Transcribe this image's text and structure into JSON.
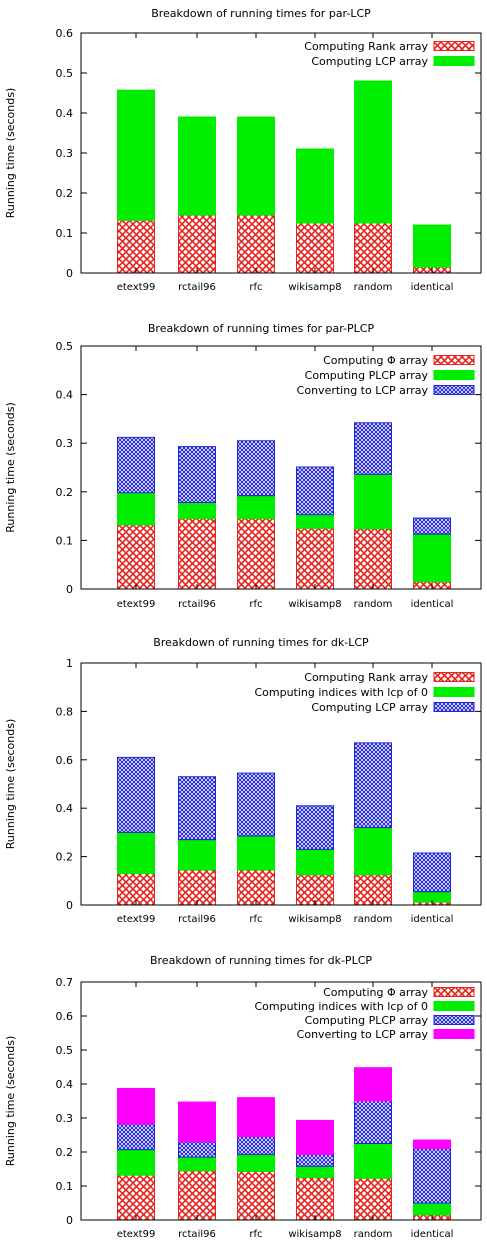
{
  "colors": {
    "red": "#e8221c",
    "green": "#00ee00",
    "blue": "#1c22d8",
    "magenta": "#ff00ff",
    "axis": "#000000"
  },
  "chart_data": [
    {
      "type": "bar",
      "stacked": true,
      "title": "Breakdown of running times for par-LCP",
      "ylabel": "Running time (seconds)",
      "xlabel": "",
      "ylim": [
        0,
        0.6
      ],
      "yticks": [
        "0",
        "0.1",
        "0.2",
        "0.3",
        "0.4",
        "0.5",
        "0.6"
      ],
      "ytick_values": [
        0,
        0.1,
        0.2,
        0.3,
        0.4,
        0.5,
        0.6
      ],
      "categories": [
        "etext99",
        "rctail96",
        "rfc",
        "wikisamp8",
        "random",
        "identical"
      ],
      "legend_position": "top-right",
      "series": [
        {
          "name": "Computing Rank array",
          "pattern": "red-crosshatch",
          "values": [
            0.132,
            0.145,
            0.145,
            0.125,
            0.125,
            0.015
          ]
        },
        {
          "name": "Computing LCP array",
          "pattern": "green-solid",
          "values": [
            0.325,
            0.245,
            0.245,
            0.185,
            0.355,
            0.105
          ]
        }
      ]
    },
    {
      "type": "bar",
      "stacked": true,
      "title": "Breakdown of running times for par-PLCP",
      "ylabel": "Running time (seconds)",
      "xlabel": "",
      "ylim": [
        0,
        0.5
      ],
      "yticks": [
        "0",
        "0.1",
        "0.2",
        "0.3",
        "0.4",
        "0.5"
      ],
      "ytick_values": [
        0,
        0.1,
        0.2,
        0.3,
        0.4,
        0.5
      ],
      "categories": [
        "etext99",
        "rctail96",
        "rfc",
        "wikisamp8",
        "random",
        "identical"
      ],
      "legend_position": "top-right",
      "series": [
        {
          "name": "Computing Φ array",
          "pattern": "red-crosshatch",
          "values": [
            0.132,
            0.145,
            0.145,
            0.125,
            0.124,
            0.015
          ]
        },
        {
          "name": "Computing PLCP array",
          "pattern": "green-solid",
          "values": [
            0.066,
            0.033,
            0.047,
            0.028,
            0.112,
            0.098
          ]
        },
        {
          "name": "Converting to LCP array",
          "pattern": "blue-crosshatch",
          "values": [
            0.114,
            0.115,
            0.113,
            0.098,
            0.106,
            0.033
          ]
        }
      ]
    },
    {
      "type": "bar",
      "stacked": true,
      "title": "Breakdown of running times for dk-LCP",
      "ylabel": "Running time (seconds)",
      "xlabel": "",
      "ylim": [
        0,
        1
      ],
      "yticks": [
        "0",
        "0.2",
        "0.4",
        "0.6",
        "0.8",
        "1"
      ],
      "ytick_values": [
        0,
        0.2,
        0.4,
        0.6,
        0.8,
        1
      ],
      "categories": [
        "etext99",
        "rctail96",
        "rfc",
        "wikisamp8",
        "random",
        "identical"
      ],
      "legend_position": "top-right",
      "series": [
        {
          "name": "Computing Rank array",
          "pattern": "red-crosshatch",
          "values": [
            0.13,
            0.145,
            0.145,
            0.125,
            0.125,
            0.012
          ]
        },
        {
          "name": "Computing indices with lcp of 0",
          "pattern": "green-solid",
          "values": [
            0.17,
            0.125,
            0.14,
            0.105,
            0.195,
            0.043
          ]
        },
        {
          "name": "Computing LCP array",
          "pattern": "blue-crosshatch",
          "values": [
            0.31,
            0.26,
            0.26,
            0.18,
            0.35,
            0.16
          ]
        }
      ]
    },
    {
      "type": "bar",
      "stacked": true,
      "title": "Breakdown of running times for dk-PLCP",
      "ylabel": "Running time (seconds)",
      "xlabel": "",
      "ylim": [
        0,
        0.7
      ],
      "yticks": [
        "0",
        "0.1",
        "0.2",
        "0.3",
        "0.4",
        "0.5",
        "0.6",
        "0.7"
      ],
      "ytick_values": [
        0,
        0.1,
        0.2,
        0.3,
        0.4,
        0.5,
        0.6,
        0.7
      ],
      "categories": [
        "etext99",
        "rctail96",
        "rfc",
        "wikisamp8",
        "random",
        "identical"
      ],
      "legend_position": "top-right",
      "series": [
        {
          "name": "Computing Φ array",
          "pattern": "red-crosshatch",
          "values": [
            0.132,
            0.145,
            0.143,
            0.125,
            0.123,
            0.015
          ]
        },
        {
          "name": "Computing indices with lcp of 0",
          "pattern": "green-solid",
          "values": [
            0.075,
            0.04,
            0.05,
            0.033,
            0.102,
            0.035
          ]
        },
        {
          "name": "Computing PLCP array",
          "pattern": "blue-crosshatch",
          "values": [
            0.075,
            0.045,
            0.052,
            0.035,
            0.125,
            0.16
          ]
        },
        {
          "name": "Converting to LCP array",
          "pattern": "magenta-solid",
          "values": [
            0.105,
            0.117,
            0.115,
            0.1,
            0.098,
            0.025
          ]
        }
      ]
    }
  ]
}
